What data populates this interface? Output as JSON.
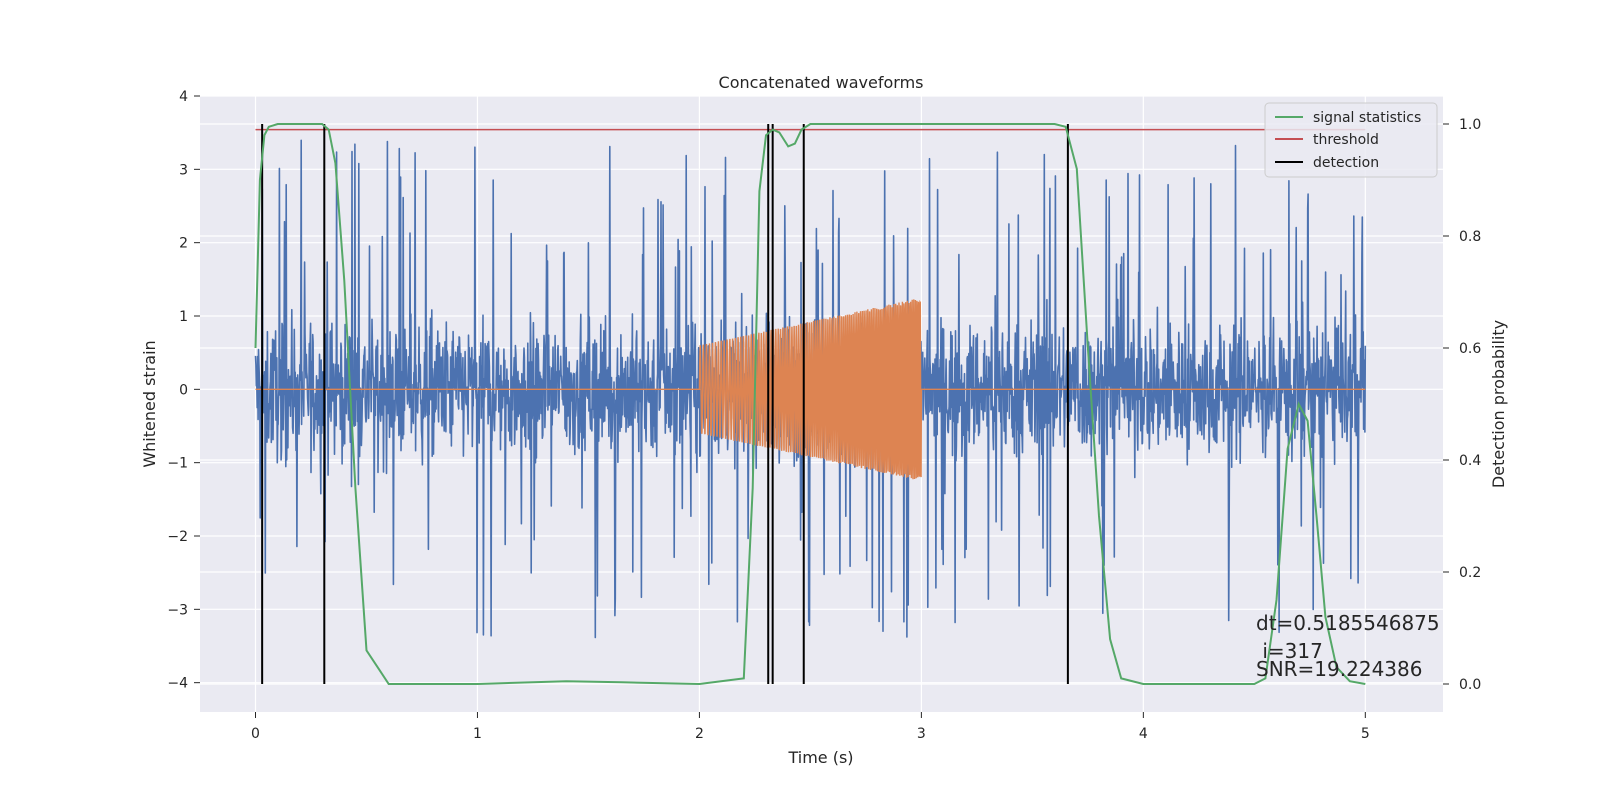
{
  "chart_data": {
    "type": "line",
    "title": "Concatenated waveforms",
    "xlabel": "Time (s)",
    "ylabel": "Whitened strain",
    "y2label": "Detection probability",
    "xlim": [
      -0.25,
      5.35
    ],
    "ylim": [
      -4.4,
      4.0
    ],
    "y2lim": [
      -0.05,
      1.05
    ],
    "xticks": [
      "0",
      "1",
      "2",
      "3",
      "4",
      "5"
    ],
    "yticks": [
      "−4",
      "−3",
      "−2",
      "−1",
      "0",
      "1",
      "2",
      "3",
      "4"
    ],
    "y2ticks": [
      "0.0",
      "0.2",
      "0.4",
      "0.6",
      "0.8",
      "1.0"
    ],
    "grid": true,
    "legend_position": "top-right",
    "series": [
      {
        "label": "whitened-noise",
        "axis": "left",
        "color": "#4c72b0",
        "description": "whitened noise strain, approx. ±1 typical amplitude with spikes up to ±3.5 over 0–5 s"
      },
      {
        "label": "injected-chirp",
        "axis": "left",
        "color": "#dd8452",
        "x_start": 2.0,
        "x_end": 3.0,
        "amp_start": 0.6,
        "amp_end": 1.25,
        "description": "chirp waveform injected between 2 s and 3 s, zero elsewhere"
      },
      {
        "name": "signal statistics",
        "axis": "right",
        "color": "#55a868",
        "x": [
          0.0,
          0.02,
          0.04,
          0.06,
          0.1,
          0.2,
          0.3,
          0.33,
          0.36,
          0.4,
          0.45,
          0.5,
          0.6,
          1.0,
          1.4,
          1.65,
          2.0,
          2.2,
          2.24,
          2.27,
          2.3,
          2.33,
          2.36,
          2.4,
          2.43,
          2.46,
          2.5,
          2.6,
          3.0,
          3.6,
          3.65,
          3.7,
          3.75,
          3.8,
          3.85,
          3.9,
          4.0,
          4.5,
          4.55,
          4.6,
          4.65,
          4.7,
          4.74,
          4.78,
          4.82,
          4.87,
          4.93,
          5.0
        ],
        "y": [
          0.6,
          0.9,
          0.98,
          0.995,
          1.0,
          1.0,
          1.0,
          0.99,
          0.93,
          0.72,
          0.35,
          0.06,
          0.0,
          0.0,
          0.005,
          0.003,
          0.0,
          0.01,
          0.35,
          0.88,
          0.98,
          0.99,
          0.985,
          0.96,
          0.965,
          0.99,
          1.0,
          1.0,
          1.0,
          1.0,
          0.995,
          0.92,
          0.6,
          0.3,
          0.08,
          0.01,
          0.0,
          0.0,
          0.01,
          0.15,
          0.42,
          0.5,
          0.47,
          0.3,
          0.12,
          0.03,
          0.005,
          0.0
        ]
      },
      {
        "name": "threshold",
        "axis": "right",
        "color": "#c44e52",
        "value": 0.99
      },
      {
        "name": "detection",
        "axis": "right",
        "color": "#000000",
        "x": [
          0.03,
          0.31,
          2.31,
          2.33,
          2.47,
          3.66
        ]
      }
    ],
    "legend": [
      "signal statistics",
      "threshold",
      "detection"
    ],
    "annotations": {
      "dt": "dt=0.5185546875",
      "i": " i=317",
      "snr": "SNR=19.224386"
    }
  }
}
